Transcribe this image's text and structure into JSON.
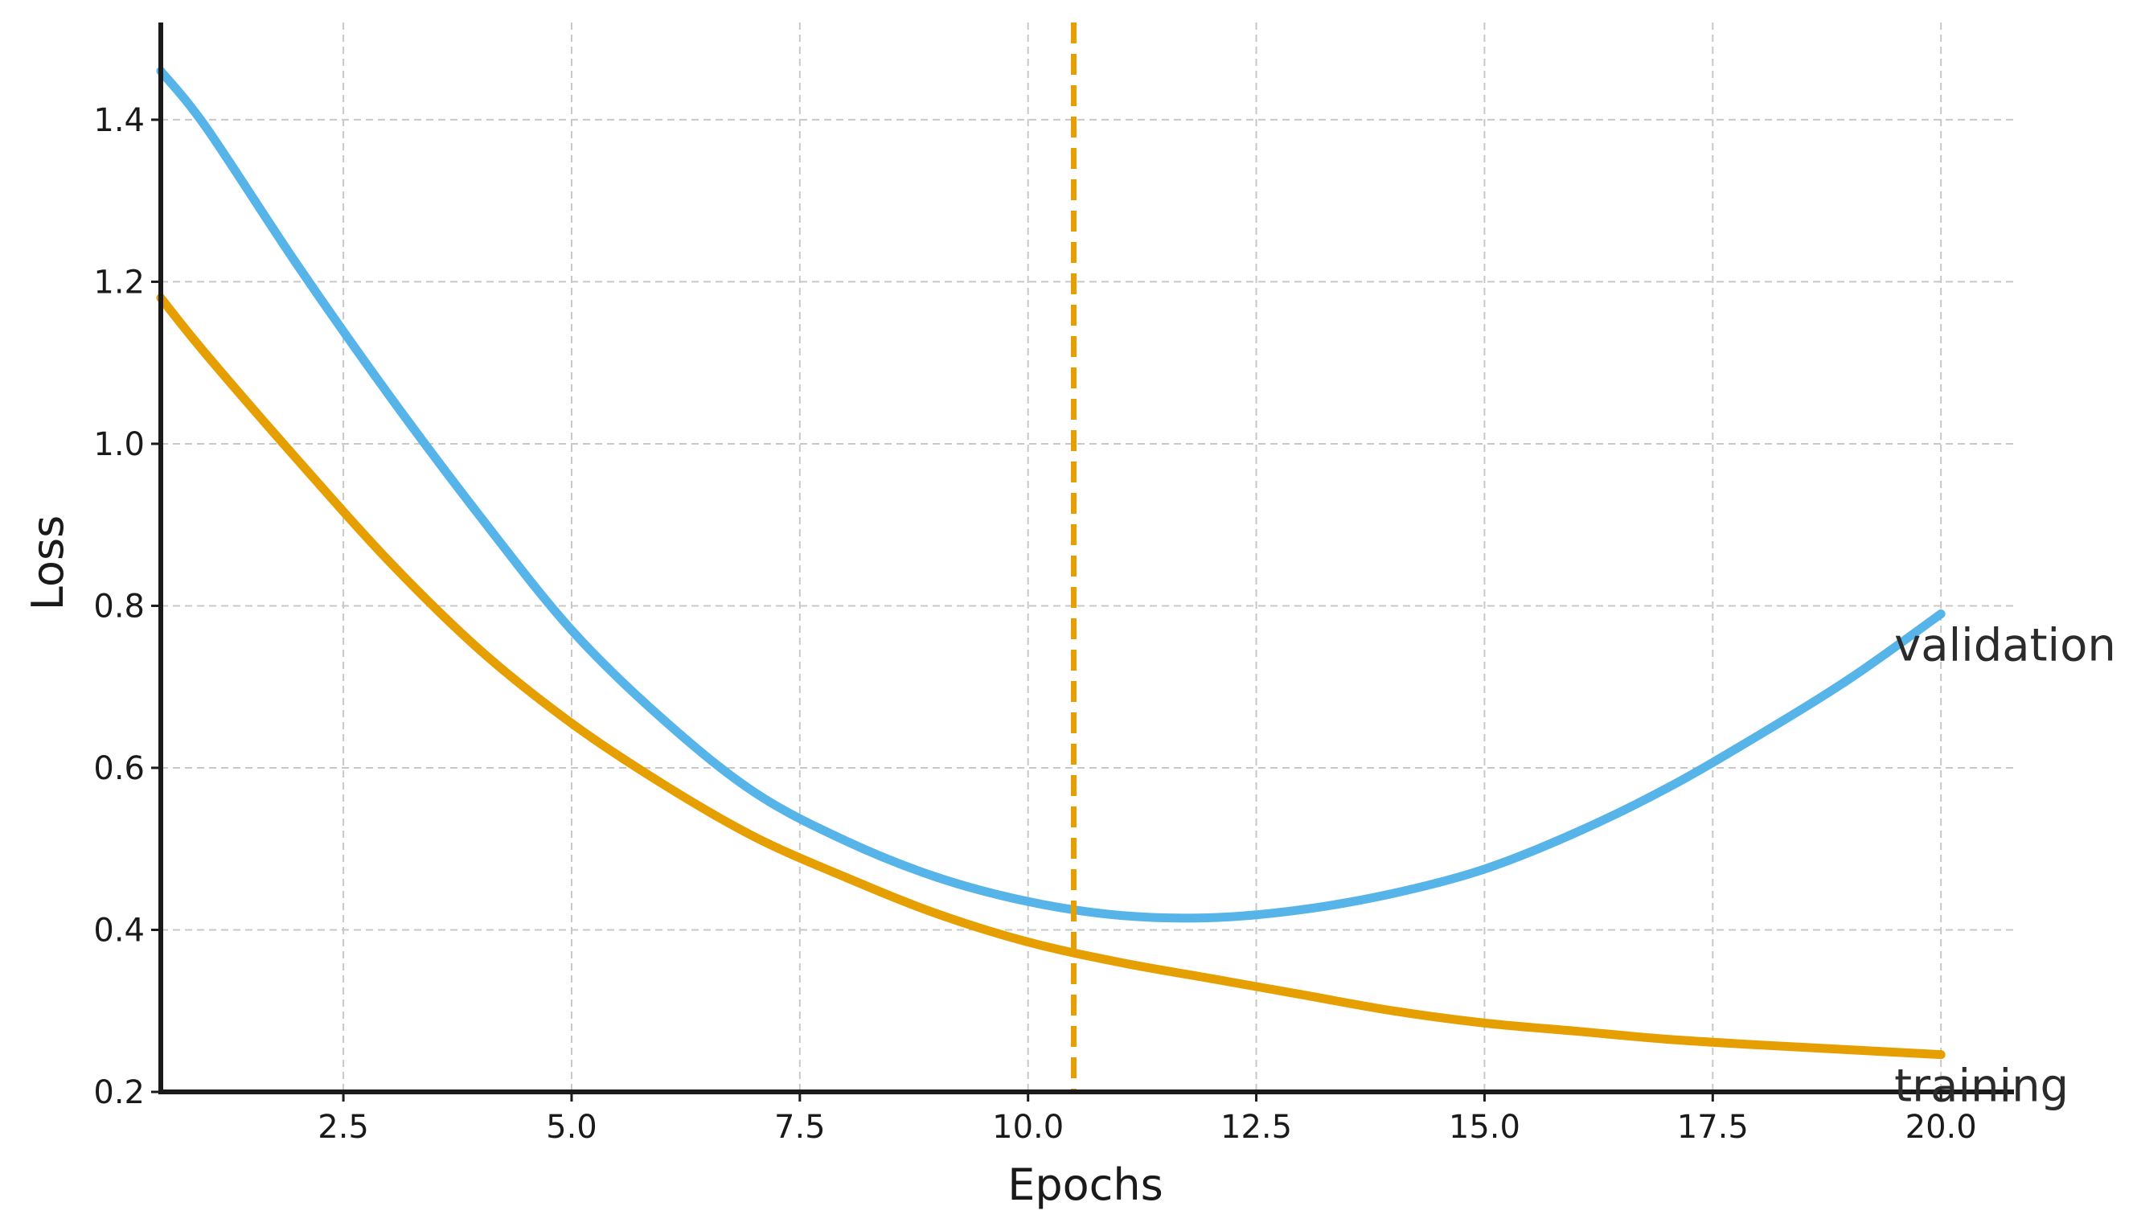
{
  "chart_data": {
    "type": "line",
    "title": "",
    "xlabel": "Epochs",
    "ylabel": "Loss",
    "xlim": [
      0.5,
      20.8
    ],
    "ylim": [
      0.2,
      1.52
    ],
    "xticks": [
      2.5,
      5.0,
      7.5,
      10.0,
      12.5,
      15.0,
      17.5,
      20.0
    ],
    "xtick_labels": [
      "2.5",
      "5.0",
      "7.5",
      "10.0",
      "12.5",
      "15.0",
      "17.5",
      "20.0"
    ],
    "yticks": [
      0.2,
      0.4,
      0.6,
      0.8,
      1.0,
      1.2,
      1.4
    ],
    "ytick_labels": [
      "0.2",
      "0.4",
      "0.6",
      "0.8",
      "1.0",
      "1.2",
      "1.4"
    ],
    "grid": true,
    "legend": "inline labels at right end of each series",
    "series": [
      {
        "name": "validation",
        "color": "#56B4E9",
        "x": [
          0.5,
          1,
          2,
          3,
          4,
          5,
          6,
          7,
          8,
          9,
          10,
          11,
          12,
          13,
          14,
          15,
          16,
          17,
          18,
          19,
          20
        ],
        "y": [
          1.46,
          1.39,
          1.22,
          1.06,
          0.91,
          0.77,
          0.66,
          0.57,
          0.51,
          0.465,
          0.435,
          0.418,
          0.415,
          0.425,
          0.445,
          0.475,
          0.52,
          0.575,
          0.64,
          0.71,
          0.79
        ]
      },
      {
        "name": "training",
        "color": "#E69F00",
        "x": [
          0.5,
          1,
          2,
          3,
          4,
          5,
          6,
          7,
          8,
          9,
          10,
          11,
          12,
          13,
          14,
          15,
          16,
          17,
          18,
          19,
          20
        ],
        "y": [
          1.18,
          1.11,
          0.98,
          0.855,
          0.745,
          0.655,
          0.58,
          0.515,
          0.465,
          0.42,
          0.385,
          0.36,
          0.34,
          0.32,
          0.3,
          0.285,
          0.275,
          0.265,
          0.258,
          0.252,
          0.246
        ]
      }
    ],
    "vlines": [
      {
        "x": 10.5,
        "color": "#E69F00",
        "style": "dashed"
      }
    ]
  }
}
